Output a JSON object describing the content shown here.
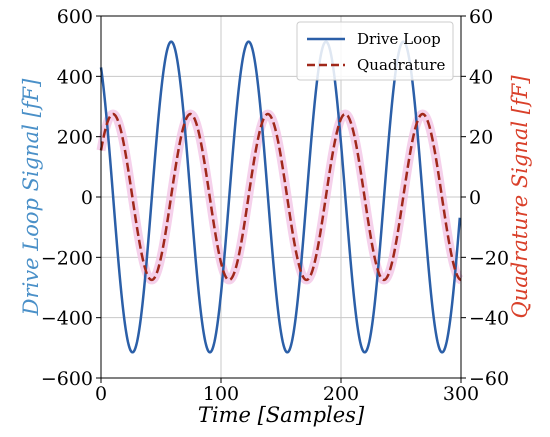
{
  "chart_data": {
    "type": "line",
    "xlabel": "Time [Samples]",
    "ylabel_left": "Drive Loop Signal [fF]",
    "ylabel_right": "Quadrature Signal [fF]",
    "xlim": [
      0,
      300
    ],
    "ylim_left": [
      -600,
      600
    ],
    "ylim_right": [
      -60,
      60
    ],
    "x_ticks": [
      0,
      100,
      200,
      300
    ],
    "y_ticks_left": [
      -600,
      -400,
      -200,
      0,
      200,
      400,
      600
    ],
    "y_ticks_right": [
      -60,
      -40,
      -20,
      0,
      20,
      40,
      60
    ],
    "grid": true,
    "legend_position": "top-right",
    "colors": {
      "drive": "#2b5fa8",
      "quadrature": "#a0281a",
      "quadrature_glow": "#f2c6e6",
      "left_axis_label": "#4a90c8",
      "right_axis_label": "#d9402a",
      "grid": "#c8c8c8"
    },
    "series": [
      {
        "name": "Drive Loop",
        "axis": "left",
        "style": "solid",
        "amplitude": 515,
        "period": 64.5,
        "peak_x": 58.5,
        "x_start": 0,
        "x_end": 299
      },
      {
        "name": "Quadrature",
        "axis": "right",
        "style": "dashed",
        "amplitude": 27.5,
        "period": 64.5,
        "peak_x": 10,
        "x_start": 0,
        "x_end": 300
      }
    ]
  }
}
